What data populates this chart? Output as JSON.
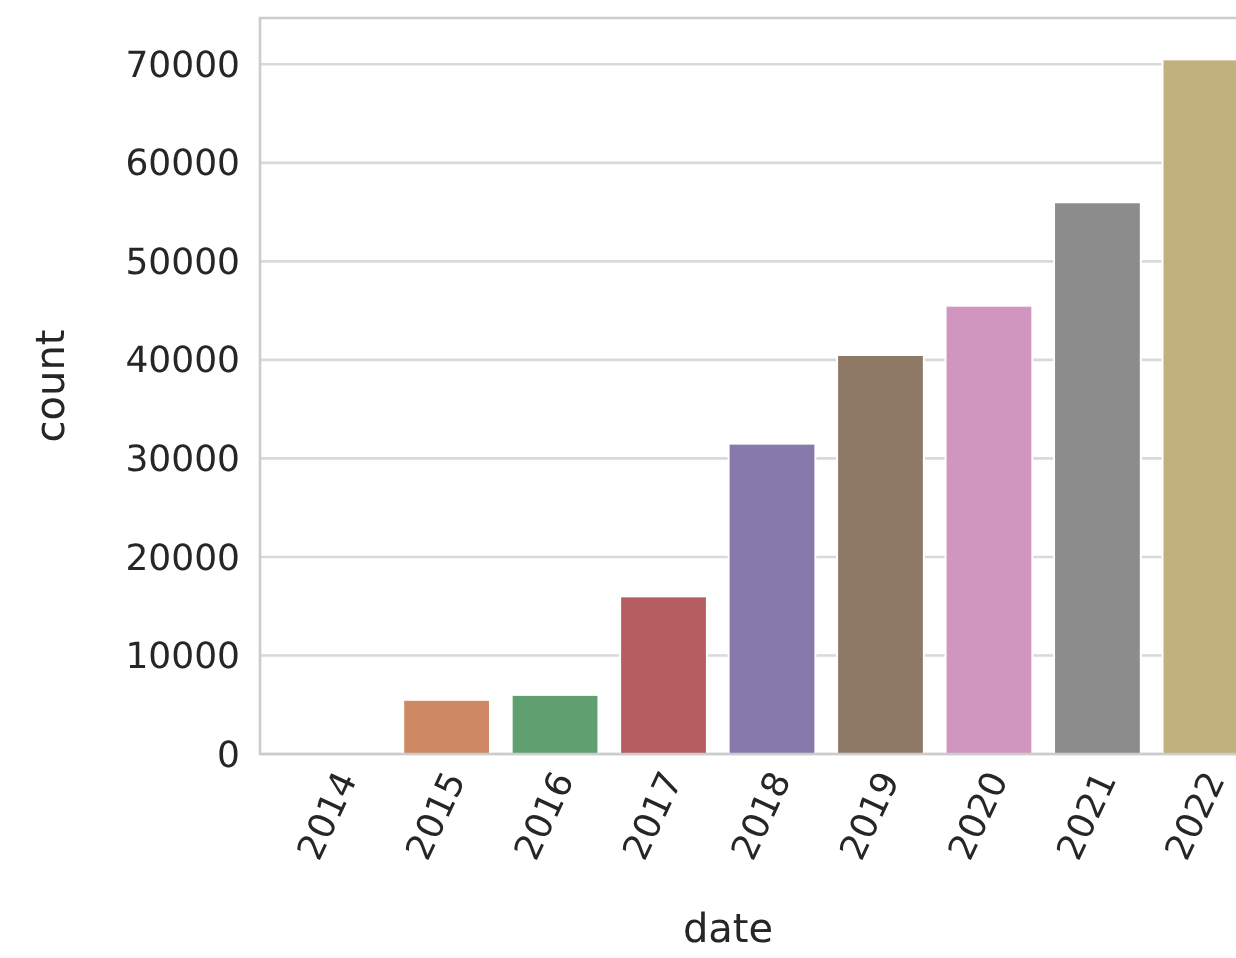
{
  "chart_data": {
    "type": "bar",
    "xlabel": "date",
    "ylabel": "count",
    "categories": [
      "2014",
      "2015",
      "2016",
      "2017",
      "2018",
      "2019",
      "2020",
      "2021",
      "2022"
    ],
    "values": [
      0,
      5500,
      6000,
      16000,
      31500,
      40500,
      45500,
      56000,
      70500
    ],
    "colors": [
      "#5875a4",
      "#ce8964",
      "#609f6f",
      "#b55d60",
      "#877aab",
      "#8e7967",
      "#d096bf",
      "#8c8c8c",
      "#c1b17d"
    ],
    "ylim": [
      0,
      74700
    ],
    "yticks": [
      0,
      10000,
      20000,
      30000,
      40000,
      50000,
      60000,
      70000
    ],
    "grid": "y"
  }
}
